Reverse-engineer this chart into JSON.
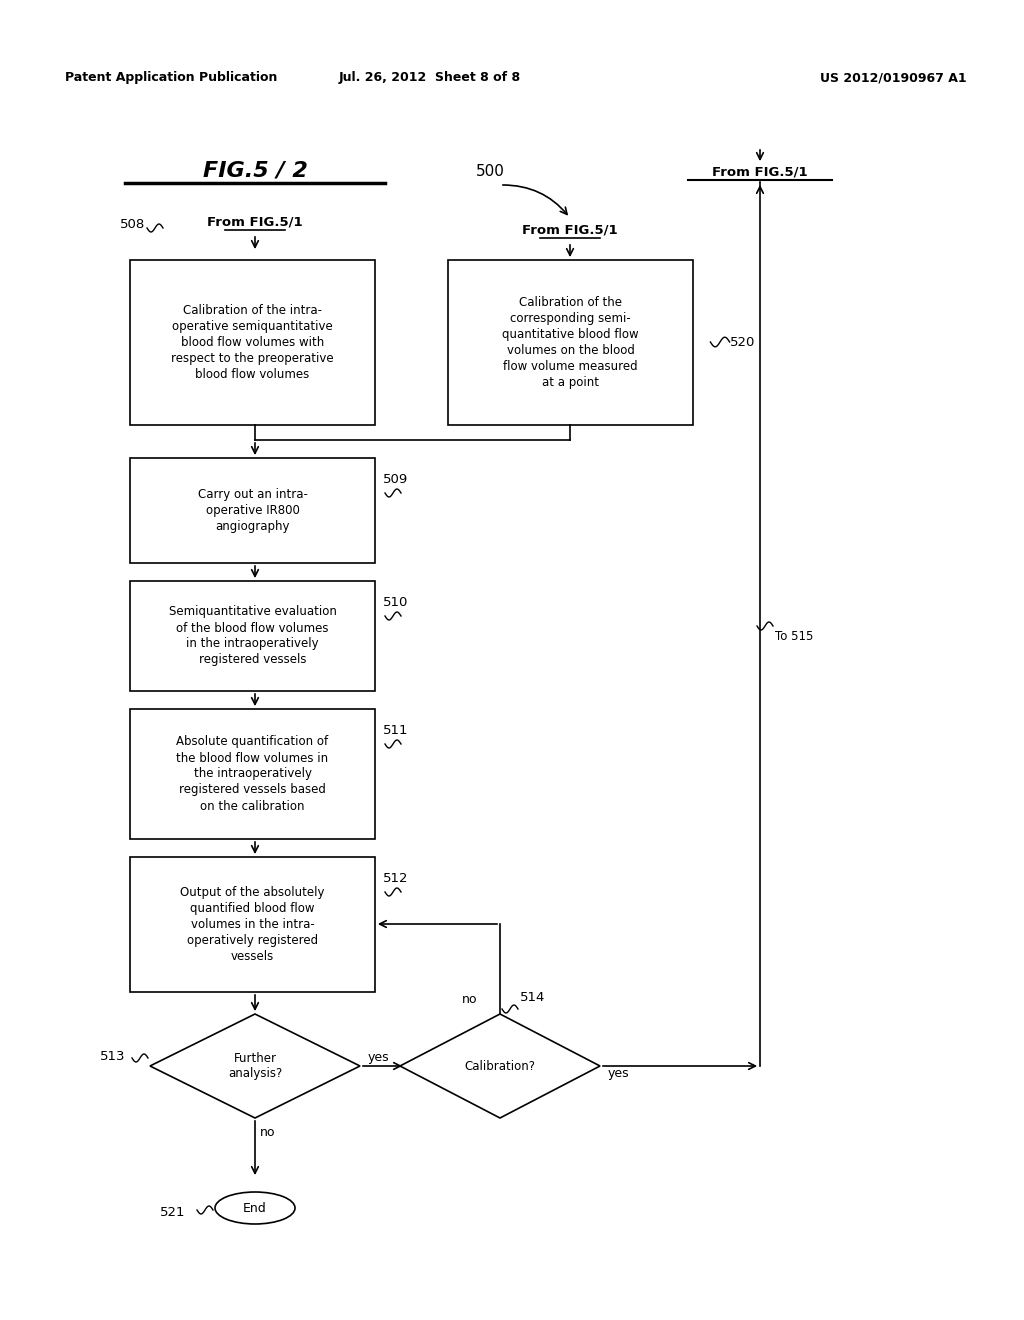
{
  "bg_color": "#ffffff",
  "header_left": "Patent Application Publication",
  "header_mid": "Jul. 26, 2012  Sheet 8 of 8",
  "header_right": "US 2012/0190967 A1",
  "fig_title": "FIG.5 / 2",
  "label_500": "500",
  "label_508": "508",
  "label_509": "509",
  "label_510": "510",
  "label_511": "511",
  "label_512": "512",
  "label_513": "513",
  "label_514": "514",
  "label_520": "520",
  "label_521": "521",
  "label_to515": "To 515",
  "from_fig_tr": "From FIG.5/1",
  "from_fig_left": "From FIG.5/1",
  "from_fig_center": "From FIG.5/1",
  "box1_text": "Calibration of the intra-\noperative semiquantitative\nblood flow volumes with\nrespect to the preoperative\nblood flow volumes",
  "box2_text": "Calibration of the\ncorresponding semi-\nquantitative blood flow\nvolumes on the blood\nflow volume measured\nat a point",
  "box3_text": "Carry out an intra-\noperative IR800\nangiography",
  "box4_text": "Semiquantitative evaluation\nof the blood flow volumes\nin the intraoperatively\nregistered vessels",
  "box5_text": "Absolute quantification of\nthe blood flow volumes in\nthe intraoperatively\nregistered vessels based\non the calibration",
  "box6_text": "Output of the absolutely\nquantified blood flow\nvolumes in the intra-\noperatively registered\nvessels",
  "diamond1_text": "Further\nanalysis?",
  "diamond2_text": "Calibration?",
  "end_text": "End",
  "yes1": "yes",
  "no1": "no",
  "yes2": "yes",
  "no2": "no"
}
